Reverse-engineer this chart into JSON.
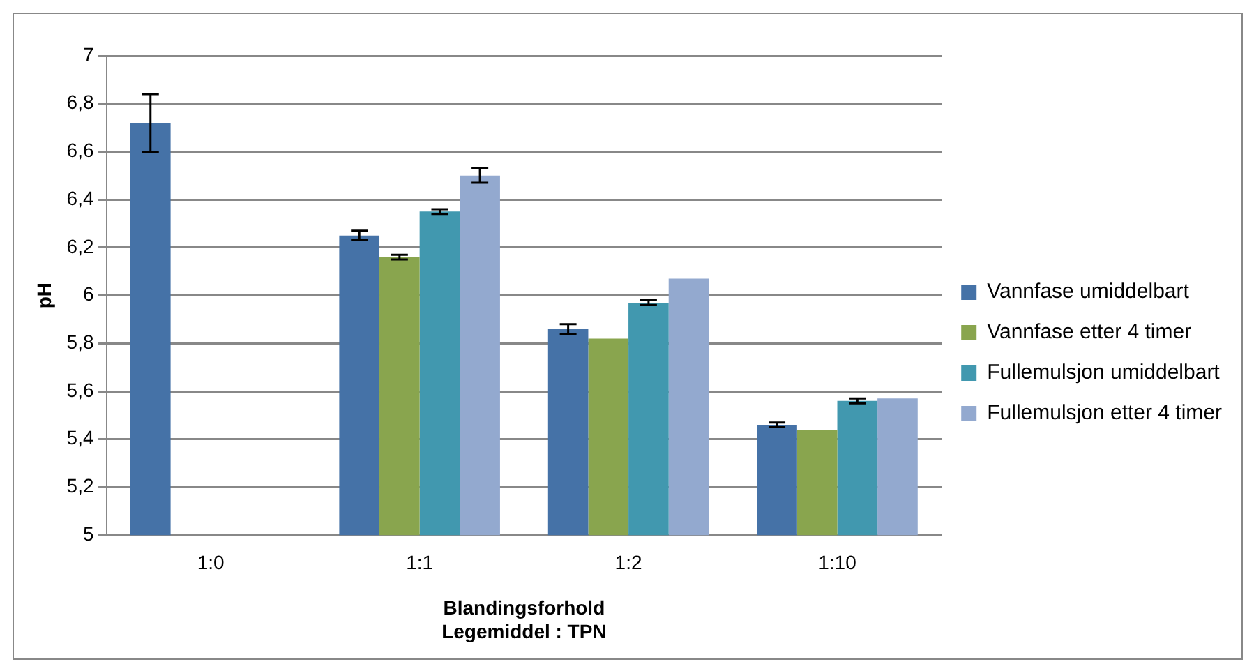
{
  "chart_data": {
    "type": "bar",
    "xlabel": "Blandingsforhold\nLegemiddel : TPN",
    "ylabel": "pH",
    "categories": [
      "1:0",
      "1:1",
      "1:2",
      "1:10"
    ],
    "series": [
      {
        "name": "Vannfase umiddelbart",
        "color": "#4572a7",
        "values": [
          6.72,
          6.25,
          5.86,
          5.46
        ],
        "errors": [
          0.12,
          0.02,
          0.02,
          0.01
        ]
      },
      {
        "name": "Vannfase etter 4 timer",
        "color": "#89a54e",
        "values": [
          null,
          6.16,
          5.82,
          5.44
        ],
        "errors": [
          null,
          0.01,
          null,
          null
        ]
      },
      {
        "name": "Fullemulsjon umiddelbart",
        "color": "#4198af",
        "values": [
          null,
          6.35,
          5.97,
          5.56
        ],
        "errors": [
          null,
          0.01,
          0.01,
          0.01
        ]
      },
      {
        "name": "Fullemulsjon etter 4 timer",
        "color": "#93a9cf",
        "values": [
          null,
          6.5,
          6.07,
          5.57
        ],
        "errors": [
          null,
          0.03,
          null,
          null
        ]
      }
    ],
    "ylim": [
      5,
      7
    ],
    "yticks": [
      5,
      {
        "value": 5.2,
        "label": "5,2"
      },
      {
        "value": 5.4,
        "label": "5,4"
      },
      {
        "value": 5.6,
        "label": "5,6"
      },
      {
        "value": 5.8,
        "label": "5,8"
      },
      6,
      {
        "value": 6.2,
        "label": "6,2"
      },
      {
        "value": 6.4,
        "label": "6,4"
      },
      {
        "value": 6.6,
        "label": "6,6"
      },
      {
        "value": 6.8,
        "label": "6,8"
      },
      7
    ],
    "grid": "y",
    "legend": "right"
  }
}
